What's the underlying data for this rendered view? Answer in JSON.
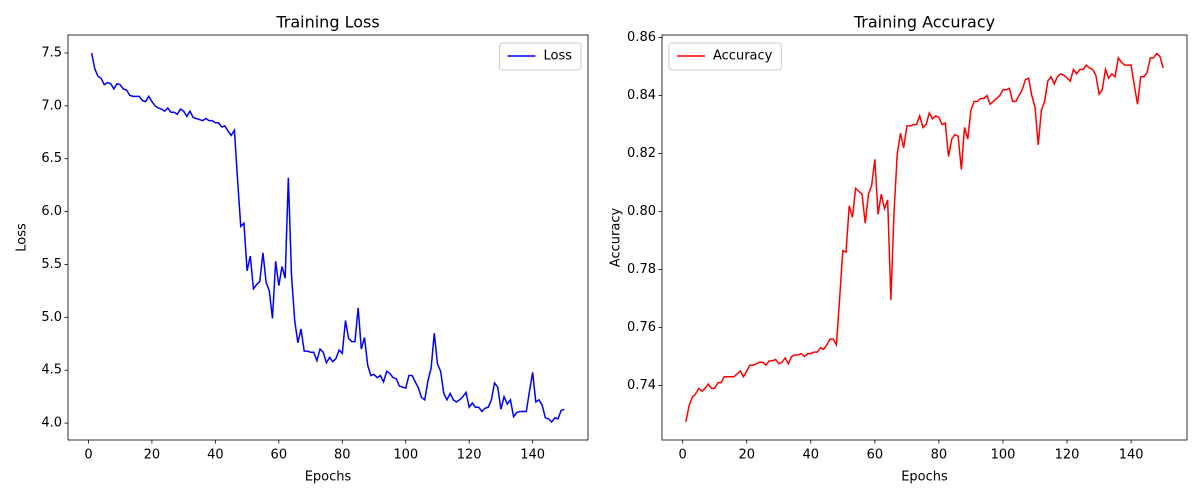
{
  "chart_data": [
    {
      "type": "line",
      "title": "Training Loss",
      "xlabel": "Epochs",
      "ylabel": "Loss",
      "legend": "upper right",
      "x": [
        1,
        2,
        3,
        4,
        5,
        6,
        7,
        8,
        9,
        10,
        11,
        12,
        13,
        14,
        15,
        16,
        17,
        18,
        19,
        20,
        21,
        22,
        23,
        24,
        25,
        26,
        27,
        28,
        29,
        30,
        31,
        32,
        33,
        34,
        35,
        36,
        37,
        38,
        39,
        40,
        41,
        42,
        43,
        44,
        45,
        46,
        47,
        48,
        49,
        50,
        51,
        52,
        53,
        54,
        55,
        56,
        57,
        58,
        59,
        60,
        61,
        62,
        63,
        64,
        65,
        66,
        67,
        68,
        69,
        70,
        71,
        72,
        73,
        74,
        75,
        76,
        77,
        78,
        79,
        80,
        81,
        82,
        83,
        84,
        85,
        86,
        87,
        88,
        89,
        90,
        91,
        92,
        93,
        94,
        95,
        96,
        97,
        98,
        99,
        100,
        101,
        102,
        103,
        104,
        105,
        106,
        107,
        108,
        109,
        110,
        111,
        112,
        113,
        114,
        115,
        116,
        117,
        118,
        119,
        120,
        121,
        122,
        123,
        124,
        125,
        126,
        127,
        128,
        129,
        130,
        131,
        132,
        133,
        134,
        135,
        136,
        137,
        138,
        139,
        140,
        141,
        142,
        143,
        144,
        145,
        146,
        147,
        148,
        149,
        150
      ],
      "series": [
        {
          "name": "Loss",
          "color": "#0000ff",
          "values": [
            7.5,
            7.35,
            7.28,
            7.26,
            7.2,
            7.22,
            7.21,
            7.16,
            7.21,
            7.2,
            7.16,
            7.15,
            7.1,
            7.09,
            7.09,
            7.09,
            7.05,
            7.04,
            7.09,
            7.04,
            7.0,
            6.98,
            6.97,
            6.95,
            6.98,
            6.94,
            6.94,
            6.92,
            6.97,
            6.95,
            6.9,
            6.95,
            6.89,
            6.88,
            6.87,
            6.86,
            6.88,
            6.86,
            6.86,
            6.84,
            6.84,
            6.8,
            6.81,
            6.76,
            6.72,
            6.77,
            6.3,
            5.86,
            5.89,
            5.44,
            5.58,
            5.27,
            5.31,
            5.34,
            5.61,
            5.33,
            5.25,
            4.99,
            5.53,
            5.3,
            5.48,
            5.37,
            6.32,
            5.4,
            4.97,
            4.76,
            4.89,
            4.68,
            4.68,
            4.67,
            4.67,
            4.59,
            4.7,
            4.67,
            4.57,
            4.62,
            4.58,
            4.61,
            4.69,
            4.66,
            4.97,
            4.8,
            4.77,
            4.77,
            5.09,
            4.7,
            4.81,
            4.55,
            4.45,
            4.46,
            4.43,
            4.45,
            4.39,
            4.49,
            4.47,
            4.43,
            4.42,
            4.35,
            4.34,
            4.33,
            4.45,
            4.45,
            4.39,
            4.33,
            4.24,
            4.22,
            4.4,
            4.52,
            4.85,
            4.56,
            4.49,
            4.28,
            4.22,
            4.28,
            4.22,
            4.2,
            4.22,
            4.25,
            4.29,
            4.15,
            4.19,
            4.15,
            4.15,
            4.11,
            4.14,
            4.15,
            4.22,
            4.38,
            4.34,
            4.13,
            4.25,
            4.18,
            4.22,
            4.06,
            4.1,
            4.11,
            4.11,
            4.11,
            4.3,
            4.48,
            4.2,
            4.22,
            4.17,
            4.05,
            4.04,
            4.01,
            4.05,
            4.04,
            4.12,
            4.13
          ]
        }
      ],
      "xlim": [
        -6.45,
        157.45
      ],
      "ylim": [
        3.84,
        7.67
      ],
      "xticks": [
        0,
        20,
        40,
        60,
        80,
        100,
        120,
        140
      ],
      "yticks": [
        {
          "value": 4,
          "label": "4.0"
        },
        4.5,
        {
          "value": 5,
          "label": "5.0"
        },
        5.5,
        {
          "value": 6,
          "label": "6.0"
        },
        6.5,
        {
          "value": 7,
          "label": "7.0"
        },
        7.5
      ]
    },
    {
      "type": "line",
      "title": "Training Accuracy",
      "xlabel": "Epochs",
      "ylabel": "Accuracy",
      "legend": "upper left",
      "x": [
        1,
        2,
        3,
        4,
        5,
        6,
        7,
        8,
        9,
        10,
        11,
        12,
        13,
        14,
        15,
        16,
        17,
        18,
        19,
        20,
        21,
        22,
        23,
        24,
        25,
        26,
        27,
        28,
        29,
        30,
        31,
        32,
        33,
        34,
        35,
        36,
        37,
        38,
        39,
        40,
        41,
        42,
        43,
        44,
        45,
        46,
        47,
        48,
        49,
        50,
        51,
        52,
        53,
        54,
        55,
        56,
        57,
        58,
        59,
        60,
        61,
        62,
        63,
        64,
        65,
        66,
        67,
        68,
        69,
        70,
        71,
        72,
        73,
        74,
        75,
        76,
        77,
        78,
        79,
        80,
        81,
        82,
        83,
        84,
        85,
        86,
        87,
        88,
        89,
        90,
        91,
        92,
        93,
        94,
        95,
        96,
        97,
        98,
        99,
        100,
        101,
        102,
        103,
        104,
        105,
        106,
        107,
        108,
        109,
        110,
        111,
        112,
        113,
        114,
        115,
        116,
        117,
        118,
        119,
        120,
        121,
        122,
        123,
        124,
        125,
        126,
        127,
        128,
        129,
        130,
        131,
        132,
        133,
        134,
        135,
        136,
        137,
        138,
        139,
        140,
        141,
        142,
        143,
        144,
        145,
        146,
        147,
        148,
        149,
        150
      ],
      "series": [
        {
          "name": "Accuracy",
          "color": "#ff0000",
          "values": [
            0.7275,
            0.733,
            0.736,
            0.737,
            0.739,
            0.738,
            0.739,
            0.7405,
            0.739,
            0.739,
            0.741,
            0.741,
            0.743,
            0.743,
            0.743,
            0.743,
            0.744,
            0.745,
            0.743,
            0.745,
            0.747,
            0.747,
            0.7475,
            0.748,
            0.748,
            0.747,
            0.7485,
            0.7485,
            0.749,
            0.7475,
            0.748,
            0.7495,
            0.7475,
            0.75,
            0.7505,
            0.7505,
            0.751,
            0.75,
            0.751,
            0.751,
            0.7515,
            0.7515,
            0.753,
            0.7525,
            0.754,
            0.756,
            0.756,
            0.754,
            0.77,
            0.7865,
            0.786,
            0.802,
            0.798,
            0.808,
            0.807,
            0.806,
            0.796,
            0.806,
            0.809,
            0.818,
            0.799,
            0.806,
            0.801,
            0.804,
            0.7695,
            0.8,
            0.82,
            0.827,
            0.822,
            0.8295,
            0.8295,
            0.83,
            0.83,
            0.833,
            0.829,
            0.83,
            0.834,
            0.832,
            0.833,
            0.8325,
            0.83,
            0.8305,
            0.819,
            0.825,
            0.8265,
            0.826,
            0.8145,
            0.829,
            0.825,
            0.835,
            0.838,
            0.838,
            0.839,
            0.839,
            0.84,
            0.837,
            0.838,
            0.839,
            0.84,
            0.842,
            0.842,
            0.8425,
            0.838,
            0.838,
            0.84,
            0.842,
            0.8455,
            0.846,
            0.84,
            0.836,
            0.823,
            0.835,
            0.838,
            0.845,
            0.8465,
            0.844,
            0.8465,
            0.8475,
            0.847,
            0.846,
            0.845,
            0.849,
            0.8475,
            0.849,
            0.849,
            0.8505,
            0.8495,
            0.849,
            0.847,
            0.8405,
            0.842,
            0.849,
            0.846,
            0.8475,
            0.8465,
            0.853,
            0.8515,
            0.8505,
            0.8505,
            0.8505,
            0.8435,
            0.837,
            0.8465,
            0.8465,
            0.848,
            0.853,
            0.853,
            0.8545,
            0.8535,
            0.8495
          ]
        }
      ],
      "xlim": [
        -6.45,
        157.45
      ],
      "ylim": [
        0.7212,
        0.8609
      ],
      "xticks": [
        0,
        20,
        40,
        60,
        80,
        100,
        120,
        140
      ],
      "yticks": [
        0.74,
        0.76,
        0.78,
        {
          "value": 0.8,
          "label": "0.80"
        },
        0.82,
        0.84,
        0.86
      ]
    }
  ]
}
